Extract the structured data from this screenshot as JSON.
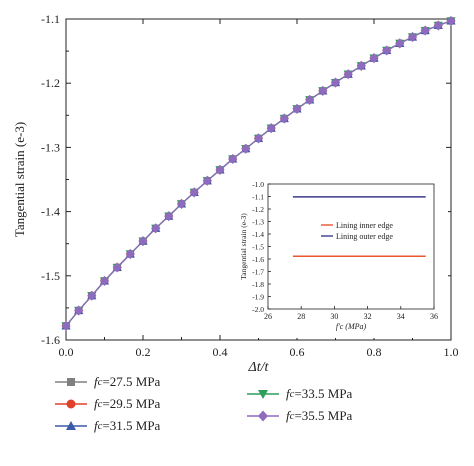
{
  "chart_data": [
    {
      "type": "line",
      "xlabel": "Δt/t",
      "ylabel": "Tangential strain (e-3)",
      "xlim": [
        0.0,
        1.0
      ],
      "ylim": [
        -1.6,
        -1.1
      ],
      "xticks": [
        "0.0",
        "0.2",
        "0.4",
        "0.6",
        "0.8",
        "1.0"
      ],
      "yticks": [
        "-1.1",
        "-1.2",
        "-1.3",
        "-1.4",
        "-1.5",
        "-1.6"
      ],
      "x": [
        0.0,
        0.033,
        0.067,
        0.1,
        0.133,
        0.167,
        0.2,
        0.233,
        0.267,
        0.3,
        0.333,
        0.367,
        0.4,
        0.433,
        0.467,
        0.5,
        0.533,
        0.567,
        0.6,
        0.633,
        0.667,
        0.7,
        0.733,
        0.767,
        0.8,
        0.833,
        0.867,
        0.9,
        0.933,
        0.967,
        1.0
      ],
      "series": [
        {
          "name": "fc=27.5 MPa",
          "label_sub": "c",
          "label_rest": "=27.5 MPa",
          "color": "#808080",
          "marker": "square",
          "values": [
            -1.578,
            -1.554,
            -1.531,
            -1.508,
            -1.487,
            -1.466,
            -1.446,
            -1.426,
            -1.407,
            -1.388,
            -1.37,
            -1.352,
            -1.335,
            -1.318,
            -1.302,
            -1.286,
            -1.27,
            -1.255,
            -1.24,
            -1.226,
            -1.212,
            -1.199,
            -1.186,
            -1.173,
            -1.161,
            -1.149,
            -1.138,
            -1.128,
            -1.118,
            -1.11,
            -1.103
          ]
        },
        {
          "name": "fc=29.5 MPa",
          "label_sub": "c",
          "label_rest": "=29.5 MPa",
          "color": "#e0402a",
          "marker": "circle",
          "values": [
            -1.578,
            -1.554,
            -1.531,
            -1.508,
            -1.487,
            -1.466,
            -1.446,
            -1.426,
            -1.407,
            -1.388,
            -1.37,
            -1.352,
            -1.335,
            -1.318,
            -1.302,
            -1.286,
            -1.27,
            -1.255,
            -1.24,
            -1.226,
            -1.212,
            -1.199,
            -1.186,
            -1.173,
            -1.161,
            -1.149,
            -1.138,
            -1.128,
            -1.118,
            -1.11,
            -1.103
          ]
        },
        {
          "name": "fc=31.5 MPa",
          "label_sub": "c",
          "label_rest": "=31.5 MPa",
          "color": "#3a5ba8",
          "marker": "triangle-up",
          "values": [
            -1.578,
            -1.554,
            -1.531,
            -1.508,
            -1.487,
            -1.466,
            -1.446,
            -1.426,
            -1.407,
            -1.388,
            -1.37,
            -1.352,
            -1.335,
            -1.318,
            -1.302,
            -1.286,
            -1.27,
            -1.255,
            -1.24,
            -1.226,
            -1.212,
            -1.199,
            -1.186,
            -1.173,
            -1.161,
            -1.149,
            -1.138,
            -1.128,
            -1.118,
            -1.11,
            -1.103
          ]
        },
        {
          "name": "fc=33.5 MPa",
          "label_sub": "c",
          "label_rest": "=33.5 MPa",
          "color": "#2e9e5b",
          "marker": "triangle-down",
          "values": [
            -1.578,
            -1.554,
            -1.531,
            -1.508,
            -1.487,
            -1.466,
            -1.446,
            -1.426,
            -1.407,
            -1.388,
            -1.37,
            -1.352,
            -1.335,
            -1.318,
            -1.302,
            -1.286,
            -1.27,
            -1.255,
            -1.24,
            -1.226,
            -1.212,
            -1.199,
            -1.186,
            -1.173,
            -1.161,
            -1.149,
            -1.138,
            -1.128,
            -1.118,
            -1.11,
            -1.103
          ]
        },
        {
          "name": "fc=35.5 MPa",
          "label_sub": "c",
          "label_rest": "=35.5 MPa",
          "color": "#8f6bbf",
          "marker": "diamond",
          "values": [
            -1.578,
            -1.554,
            -1.531,
            -1.508,
            -1.487,
            -1.466,
            -1.446,
            -1.426,
            -1.407,
            -1.388,
            -1.37,
            -1.352,
            -1.335,
            -1.318,
            -1.302,
            -1.286,
            -1.27,
            -1.255,
            -1.24,
            -1.226,
            -1.212,
            -1.199,
            -1.186,
            -1.173,
            -1.161,
            -1.149,
            -1.138,
            -1.128,
            -1.118,
            -1.11,
            -1.103
          ]
        }
      ],
      "grid": false,
      "legend_placement": "below"
    },
    {
      "type": "line",
      "inset": true,
      "xlabel": "f'c (MPa)",
      "ylabel": "Tangential strain (e-3)",
      "xlim": [
        26,
        36
      ],
      "ylim": [
        -2.0,
        -1.0
      ],
      "xticks": [
        "26",
        "28",
        "30",
        "32",
        "34",
        "36"
      ],
      "yticks": [
        "-1.0",
        "-1.1",
        "-1.2",
        "-1.3",
        "-1.4",
        "-1.5",
        "-1.6",
        "-1.7",
        "-1.8",
        "-1.9",
        "-2.0"
      ],
      "x": [
        27.5,
        29.5,
        31.5,
        33.5,
        35.5
      ],
      "series": [
        {
          "name": "Lining inner edge",
          "color": "#e8552e",
          "values": [
            -1.578,
            -1.578,
            -1.578,
            -1.578,
            -1.578
          ]
        },
        {
          "name": "Lining outer edge",
          "color": "#3b3a8e",
          "values": [
            -1.103,
            -1.103,
            -1.103,
            -1.103,
            -1.103
          ]
        }
      ],
      "legend_placement": "top-right"
    }
  ]
}
